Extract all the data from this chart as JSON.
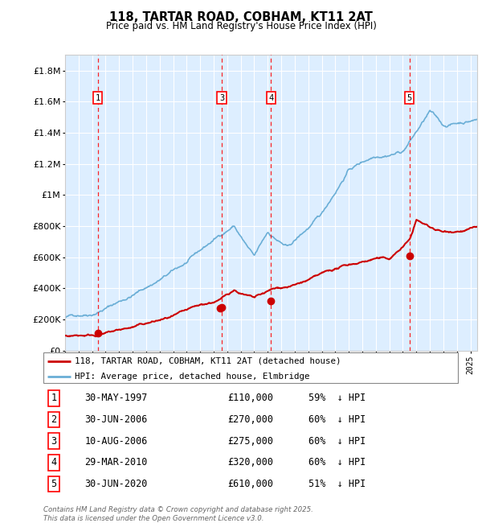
{
  "title": "118, TARTAR ROAD, COBHAM, KT11 2AT",
  "subtitle": "Price paid vs. HM Land Registry's House Price Index (HPI)",
  "ylim": [
    0,
    1900000
  ],
  "yticks": [
    0,
    200000,
    400000,
    600000,
    800000,
    1000000,
    1200000,
    1400000,
    1600000,
    1800000
  ],
  "ytick_labels": [
    "£0",
    "£200K",
    "£400K",
    "£600K",
    "£800K",
    "£1M",
    "£1.2M",
    "£1.4M",
    "£1.6M",
    "£1.8M"
  ],
  "hpi_color": "#6aaed6",
  "price_color": "#cc0000",
  "plot_bg": "#ddeeff",
  "transactions": [
    {
      "num": 1,
      "date": "30-MAY-1997",
      "year": 1997.41,
      "price": 110000,
      "pct": "59%",
      "dir": "↓"
    },
    {
      "num": 2,
      "date": "30-JUN-2006",
      "year": 2006.49,
      "price": 270000,
      "pct": "60%",
      "dir": "↓"
    },
    {
      "num": 3,
      "date": "10-AUG-2006",
      "year": 2006.6,
      "price": 275000,
      "pct": "60%",
      "dir": "↓"
    },
    {
      "num": 4,
      "date": "29-MAR-2010",
      "year": 2010.24,
      "price": 320000,
      "pct": "60%",
      "dir": "↓"
    },
    {
      "num": 5,
      "date": "30-JUN-2020",
      "year": 2020.49,
      "price": 610000,
      "pct": "51%",
      "dir": "↓"
    }
  ],
  "shown_markers": [
    1,
    3,
    4,
    5
  ],
  "legend_entries": [
    {
      "label": "118, TARTAR ROAD, COBHAM, KT11 2AT (detached house)",
      "color": "#cc0000"
    },
    {
      "label": "HPI: Average price, detached house, Elmbridge",
      "color": "#6aaed6"
    }
  ],
  "footer": "Contains HM Land Registry data © Crown copyright and database right 2025.\nThis data is licensed under the Open Government Licence v3.0.",
  "xmin": 1995,
  "xmax": 2025.5
}
